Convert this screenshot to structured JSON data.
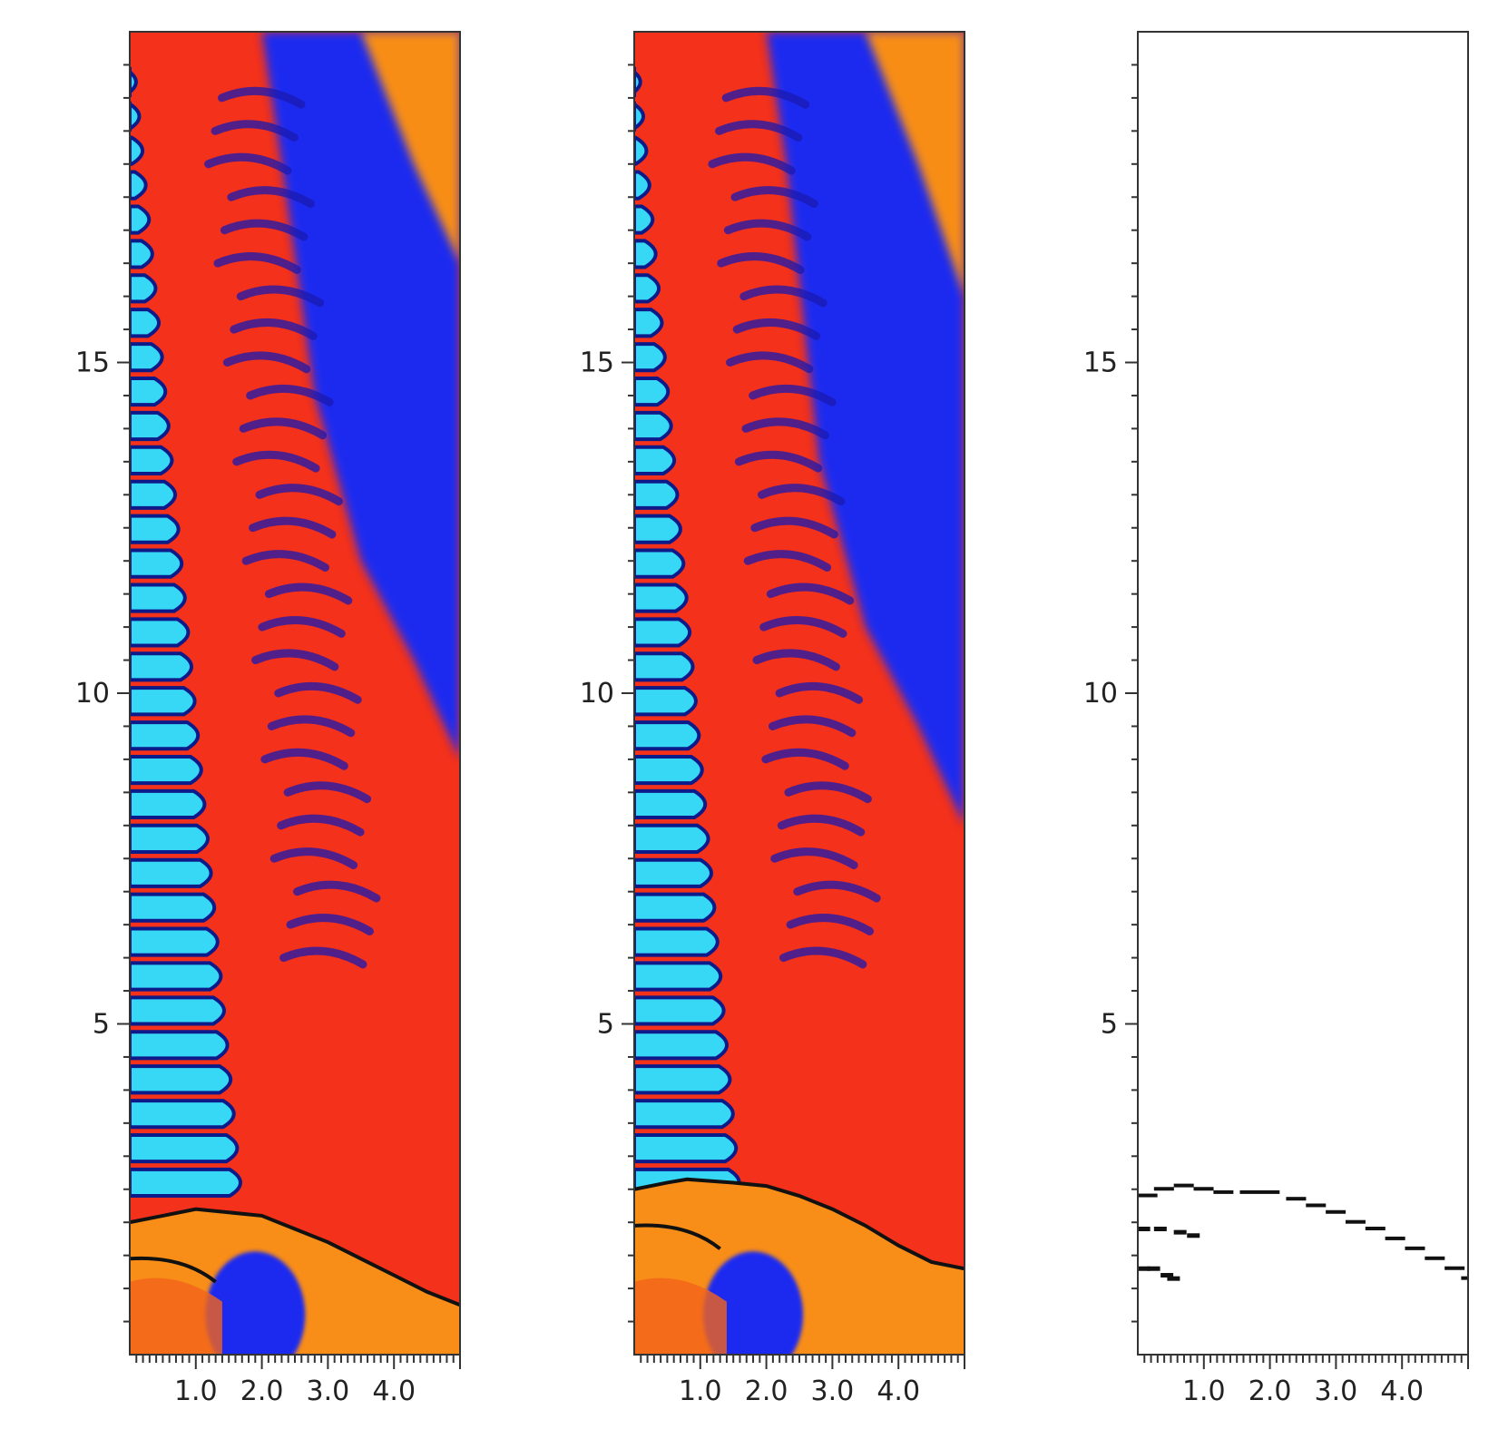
{
  "figure": {
    "panel_count": 3,
    "colors": {
      "cyan_dense": "#37d8f6",
      "blue_light": "#1f2cf0",
      "red_mid": "#f4311a",
      "orange_hot": "#f88d18",
      "shock_line": "#111111",
      "axis": "#333333",
      "background": "#ffffff"
    }
  },
  "chart_data": [
    {
      "type": "heatmap",
      "title": "",
      "xlabel": "",
      "ylabel": "",
      "xlim": [
        0,
        5
      ],
      "ylim": [
        0,
        20
      ],
      "xticks": [
        1.0,
        2.0,
        3.0,
        4.0
      ],
      "xtick_labels": [
        "1.0",
        "2.0",
        "3.0",
        "4.0"
      ],
      "yticks": [
        5,
        10,
        15
      ],
      "ytick_labels": [
        "5",
        "10",
        "15"
      ],
      "field": "pseudocolor",
      "shock_front": [
        [
          0,
          2.0
        ],
        [
          0.5,
          2.1
        ],
        [
          1.0,
          2.2
        ],
        [
          1.5,
          2.15
        ],
        [
          2.0,
          2.1
        ],
        [
          2.5,
          1.9
        ],
        [
          3.0,
          1.7
        ],
        [
          3.5,
          1.45
        ],
        [
          4.0,
          1.2
        ],
        [
          4.5,
          0.95
        ],
        [
          5.0,
          0.75
        ]
      ],
      "interface_x_bottom": 2.0,
      "interface_x_top": 0.1
    },
    {
      "type": "heatmap",
      "title": "",
      "xlabel": "",
      "ylabel": "",
      "xlim": [
        0,
        5
      ],
      "ylim": [
        0,
        20
      ],
      "xticks": [
        1.0,
        2.0,
        3.0,
        4.0
      ],
      "xtick_labels": [
        "1.0",
        "2.0",
        "3.0",
        "4.0"
      ],
      "yticks": [
        5,
        10,
        15
      ],
      "ytick_labels": [
        "5",
        "10",
        "15"
      ],
      "field": "pseudocolor",
      "shock_front": [
        [
          0,
          2.5
        ],
        [
          0.5,
          2.6
        ],
        [
          0.8,
          2.65
        ],
        [
          1.5,
          2.6
        ],
        [
          2.0,
          2.55
        ],
        [
          2.5,
          2.4
        ],
        [
          3.0,
          2.2
        ],
        [
          3.5,
          1.95
        ],
        [
          4.0,
          1.65
        ],
        [
          4.5,
          1.4
        ],
        [
          5.0,
          1.3
        ]
      ],
      "interface_x_bottom": 1.9,
      "interface_x_top": 0.1
    },
    {
      "type": "scatter",
      "title": "",
      "xlabel": "",
      "ylabel": "",
      "xlim": [
        0,
        5
      ],
      "ylim": [
        0,
        20
      ],
      "xticks": [
        1.0,
        2.0,
        3.0,
        4.0
      ],
      "xtick_labels": [
        "1.0",
        "2.0",
        "3.0",
        "4.0"
      ],
      "yticks": [
        5,
        10,
        15
      ],
      "ytick_labels": [
        "5",
        "10",
        "15"
      ],
      "series": [
        {
          "values": [
            [
              0.05,
              2.4
            ],
            [
              0.3,
              2.5
            ],
            [
              0.6,
              2.55
            ],
            [
              0.9,
              2.5
            ],
            [
              1.2,
              2.45
            ],
            [
              1.6,
              2.45
            ],
            [
              1.9,
              2.45
            ],
            [
              2.3,
              2.35
            ],
            [
              2.6,
              2.25
            ],
            [
              2.9,
              2.15
            ],
            [
              3.2,
              2.0
            ],
            [
              3.5,
              1.9
            ],
            [
              3.8,
              1.75
            ],
            [
              4.1,
              1.6
            ],
            [
              4.4,
              1.45
            ],
            [
              4.7,
              1.3
            ],
            [
              4.95,
              1.15
            ]
          ]
        },
        {
          "values": [
            [
              0.05,
              1.9
            ],
            [
              0.3,
              1.9
            ],
            [
              0.6,
              1.85
            ],
            [
              0.8,
              1.8
            ]
          ]
        },
        {
          "values": [
            [
              0.05,
              1.3
            ],
            [
              0.2,
              1.3
            ],
            [
              0.4,
              1.2
            ],
            [
              0.5,
              1.15
            ]
          ]
        }
      ]
    }
  ]
}
